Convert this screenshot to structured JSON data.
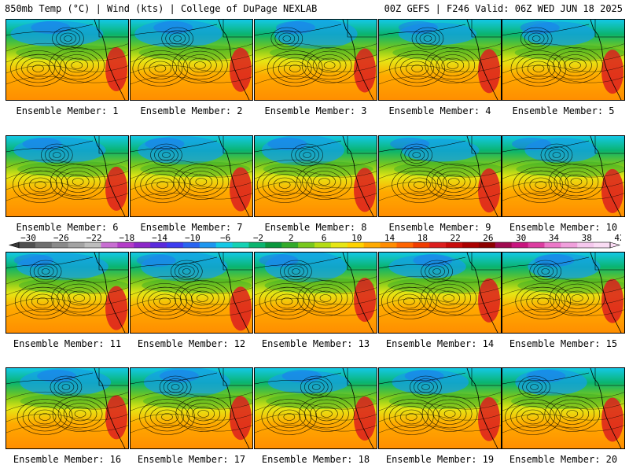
{
  "header": {
    "left": "850mb Temp (°C) | Wind (kts) | College of DuPage NEXLAB",
    "right": "00Z GEFS | F246 Valid: 06Z WED JUN 18 2025"
  },
  "members": [
    {
      "label": "Ensemble Member: 1"
    },
    {
      "label": "Ensemble Member: 2"
    },
    {
      "label": "Ensemble Member: 3"
    },
    {
      "label": "Ensemble Member: 4"
    },
    {
      "label": "Ensemble Member: 5"
    },
    {
      "label": "Ensemble Member: 6"
    },
    {
      "label": "Ensemble Member: 7"
    },
    {
      "label": "Ensemble Member: 8"
    },
    {
      "label": "Ensemble Member: 9"
    },
    {
      "label": "Ensemble Member: 10"
    },
    {
      "label": "Ensemble Member: 11"
    },
    {
      "label": "Ensemble Member: 12"
    },
    {
      "label": "Ensemble Member: 13"
    },
    {
      "label": "Ensemble Member: 14"
    },
    {
      "label": "Ensemble Member: 15"
    },
    {
      "label": "Ensemble Member: 16"
    },
    {
      "label": "Ensemble Member: 17"
    },
    {
      "label": "Ensemble Member: 18"
    },
    {
      "label": "Ensemble Member: 19"
    },
    {
      "label": "Ensemble Member: 20"
    }
  ],
  "colorbar": {
    "tick_labels": [
      "−30",
      "−26",
      "−22",
      "−18",
      "−14",
      "−10",
      "−6",
      "−2",
      "2",
      "6",
      "10",
      "14",
      "18",
      "22",
      "26",
      "30",
      "34",
      "38",
      "42"
    ],
    "colors": [
      "#505050",
      "#6e6e6e",
      "#8a8a8a",
      "#a3a3a3",
      "#bdbdbd",
      "#c86ed2",
      "#b43cc8",
      "#8c28c8",
      "#5a2adc",
      "#3c3cf0",
      "#2864f0",
      "#1e96f0",
      "#14c8e6",
      "#14d2b4",
      "#0ab46e",
      "#0a963c",
      "#32aa28",
      "#78c81e",
      "#b4dc14",
      "#e6e614",
      "#ffd200",
      "#ffaa00",
      "#ff8c00",
      "#ff6400",
      "#f03c00",
      "#dc1e1e",
      "#c80a0a",
      "#aa0000",
      "#8c0000",
      "#a00a50",
      "#c8147e",
      "#dc3ca0",
      "#ec78c8",
      "#f0a0dc",
      "#f5c8ee",
      "#fadcf4"
    ]
  }
}
